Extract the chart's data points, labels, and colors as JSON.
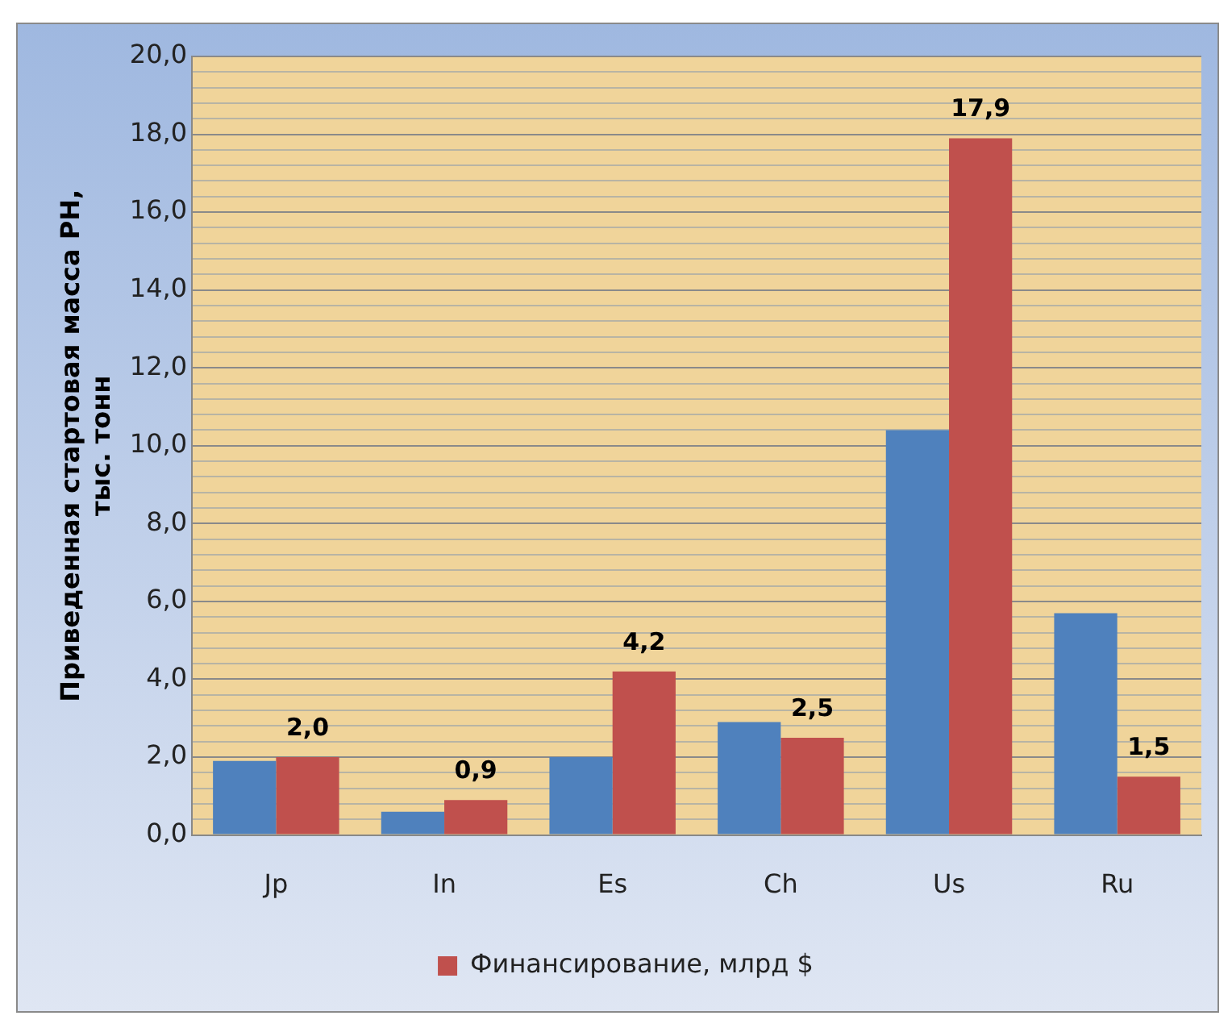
{
  "chart_data": {
    "type": "bar",
    "ylabel": "Приведенная стартовая масса РН,\nтыс. тонн",
    "categories": [
      "Jp",
      "In",
      "Es",
      "Ch",
      "Us",
      "Ru"
    ],
    "series": [
      {
        "color": "#4f81bd",
        "values": [
          1.9,
          0.6,
          2.0,
          2.9,
          10.4,
          5.7
        ]
      },
      {
        "name": "Финансирование, млрд $",
        "color": "#c0504d",
        "values": [
          2.0,
          0.9,
          4.2,
          2.5,
          17.9,
          1.5
        ],
        "value_labels": [
          "2,0",
          "0,9",
          "4,2",
          "2,5",
          "17,9",
          "1,5"
        ]
      }
    ],
    "ylim": [
      0,
      20
    ],
    "yticks": [
      {
        "value": 0,
        "label": "0,0"
      },
      {
        "value": 0.4,
        "label": null
      },
      {
        "value": 0.8,
        "label": null
      },
      {
        "value": 1.2,
        "label": null
      },
      {
        "value": 1.6,
        "label": null
      },
      {
        "value": 2,
        "label": "2,0"
      },
      {
        "value": 2.4,
        "label": null
      },
      {
        "value": 2.8,
        "label": null
      },
      {
        "value": 3.2,
        "label": null
      },
      {
        "value": 3.6,
        "label": null
      },
      {
        "value": 4,
        "label": "4,0"
      },
      {
        "value": 4.4,
        "label": null
      },
      {
        "value": 4.8,
        "label": null
      },
      {
        "value": 5.2,
        "label": null
      },
      {
        "value": 5.6,
        "label": null
      },
      {
        "value": 6,
        "label": "6,0"
      },
      {
        "value": 6.4,
        "label": null
      },
      {
        "value": 6.8,
        "label": null
      },
      {
        "value": 7.2,
        "label": null
      },
      {
        "value": 7.6,
        "label": null
      },
      {
        "value": 8,
        "label": "8,0"
      },
      {
        "value": 8.4,
        "label": null
      },
      {
        "value": 8.8,
        "label": null
      },
      {
        "value": 9.2,
        "label": null
      },
      {
        "value": 9.6,
        "label": null
      },
      {
        "value": 10,
        "label": "10,0"
      },
      {
        "value": 10.4,
        "label": null
      },
      {
        "value": 10.8,
        "label": null
      },
      {
        "value": 11.2,
        "label": null
      },
      {
        "value": 11.6,
        "label": null
      },
      {
        "value": 12,
        "label": "12,0"
      },
      {
        "value": 12.4,
        "label": null
      },
      {
        "value": 12.8,
        "label": null
      },
      {
        "value": 13.2,
        "label": null
      },
      {
        "value": 13.6,
        "label": null
      },
      {
        "value": 14,
        "label": "14,0"
      },
      {
        "value": 14.4,
        "label": null
      },
      {
        "value": 14.8,
        "label": null
      },
      {
        "value": 15.2,
        "label": null
      },
      {
        "value": 15.6,
        "label": null
      },
      {
        "value": 16,
        "label": "16,0"
      },
      {
        "value": 16.4,
        "label": null
      },
      {
        "value": 16.8,
        "label": null
      },
      {
        "value": 17.2,
        "label": null
      },
      {
        "value": 17.6,
        "label": null
      },
      {
        "value": 18,
        "label": "18,0"
      },
      {
        "value": 18.4,
        "label": null
      },
      {
        "value": 18.8,
        "label": null
      },
      {
        "value": 19.2,
        "label": null
      },
      {
        "value": 19.6,
        "label": null
      },
      {
        "value": 20,
        "label": "20,0"
      }
    ],
    "grid": "y",
    "legend": "bottom"
  }
}
